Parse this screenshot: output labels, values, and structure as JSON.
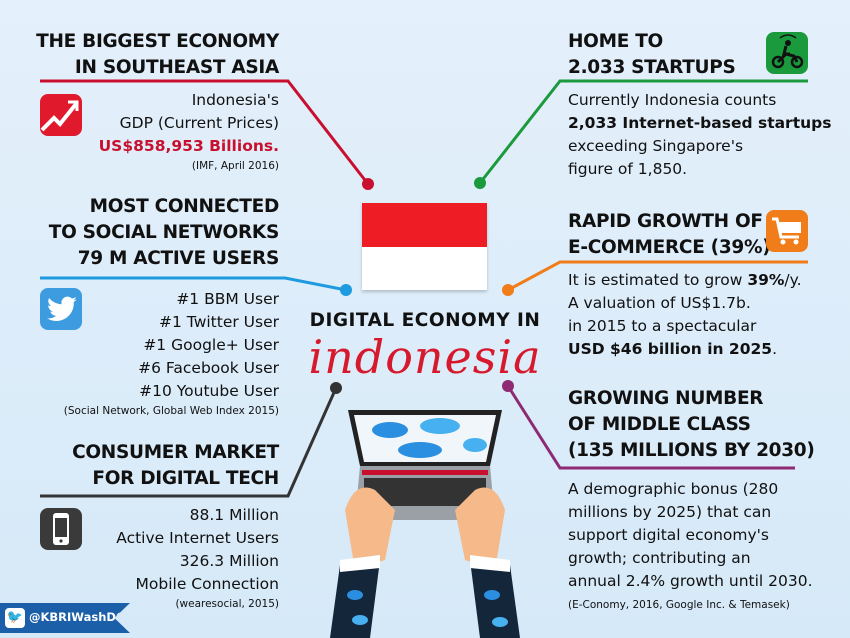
{
  "title": {
    "line1": "DIGITAL ECONOMY IN",
    "line2": "indonesia"
  },
  "sections": {
    "economy": {
      "heading": [
        "THE BIGGEST ECONOMY",
        "IN SOUTHEAST ASIA"
      ],
      "body": [
        "Indonesia's",
        "GDP (Current Prices)"
      ],
      "highlight": "US$858,953 Billions.",
      "source": "(IMF, April 2016)",
      "icon": "trend-chart-icon",
      "color": "#d7192d"
    },
    "social": {
      "heading": [
        "MOST CONNECTED",
        "TO SOCIAL NETWORKS",
        "79 M ACTIVE USERS"
      ],
      "items": [
        "#1 BBM User",
        "#1 Twitter User",
        "#1 Google+ User",
        "#6 Facebook User",
        "#10 Youtube User"
      ],
      "source": "(Social Network, Global Web Index 2015)",
      "icon": "twitter-bird-icon",
      "color": "#1e9be0"
    },
    "consumer": {
      "heading": [
        "CONSUMER MARKET",
        "FOR DIGITAL TECH"
      ],
      "body": [
        "88.1 Million",
        "Active Internet Users",
        "326.3 Million",
        "Mobile Connection"
      ],
      "source": "(wearesocial, 2015)",
      "icon": "smartphone-icon",
      "color": "#333333"
    },
    "startups": {
      "heading": [
        "HOME TO",
        "2.033 STARTUPS"
      ],
      "body": [
        [
          "Currently Indonesia counts",
          ""
        ],
        [
          "",
          "2,033 Internet-based startups"
        ],
        [
          "exceeding Singapore's",
          ""
        ],
        [
          "figure of 1,850.",
          ""
        ]
      ],
      "icon": "motorbike-rider-icon",
      "color": "#1a9a3c"
    },
    "ecommerce": {
      "heading": [
        "RAPID GROWTH OF",
        "E-COMMERCE (39%)"
      ],
      "body": [
        [
          "It is estimated to grow ",
          "39%",
          "/y."
        ],
        [
          "A valuation of US$1.7b.",
          "",
          ""
        ],
        [
          "in 2015 to a spectacular",
          "",
          ""
        ],
        [
          "",
          "USD $46 billion in 2025",
          ""
        ]
      ],
      "end": ".",
      "icon": "shopping-cart-icon",
      "color": "#f07d1a"
    },
    "middle": {
      "heading": [
        "GROWING NUMBER",
        "OF MIDDLE CLASS",
        "(135 MILLIONS BY 2030)"
      ],
      "body": [
        "A demographic bonus (280",
        "millions by 2025) that can",
        "support digital economy's",
        "growth; contributing an",
        "annual 2.4% growth until 2030."
      ],
      "source": "(E-Conomy, 2016, Google Inc. & Temasek)",
      "color": "#8e2a73"
    }
  },
  "badge": {
    "handle": "@KBRIWashDC",
    "icon": "twitter-bird-icon",
    "color": "#1b5fa8"
  },
  "flag": {
    "top": "#ee1c25",
    "bottom": "#ffffff"
  }
}
